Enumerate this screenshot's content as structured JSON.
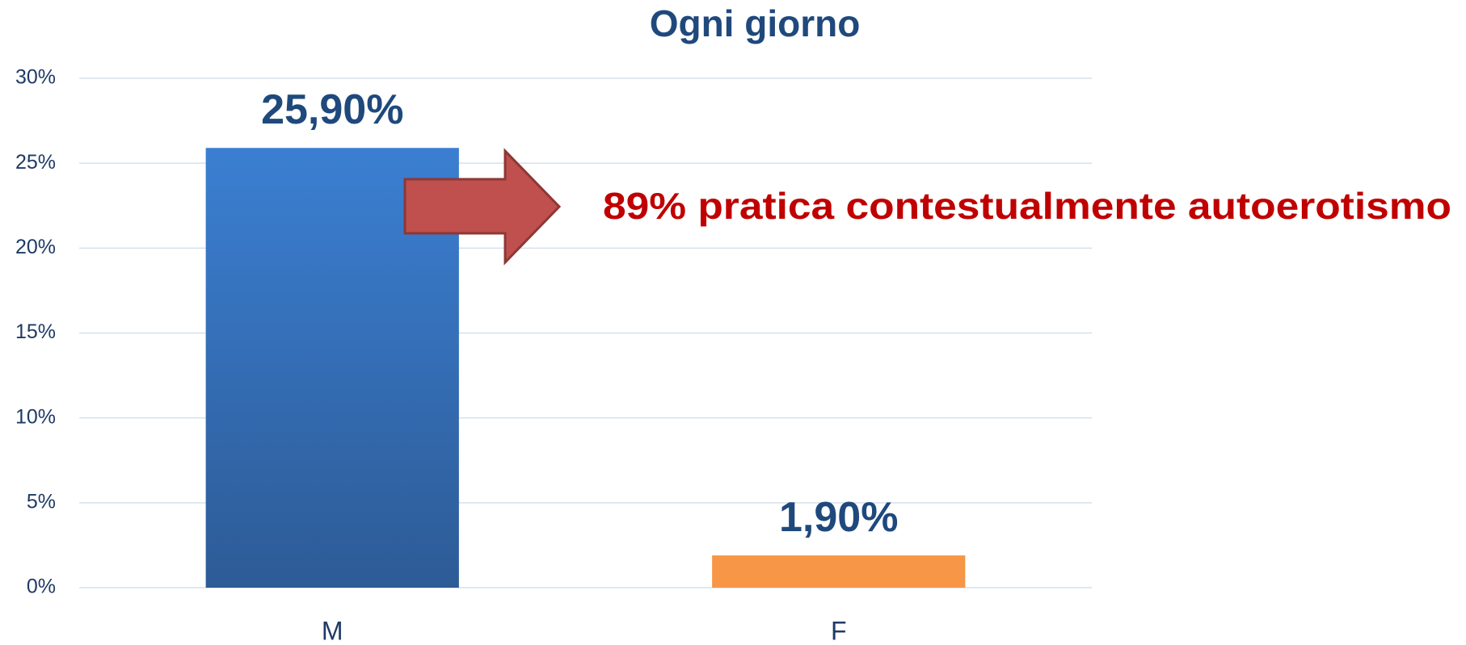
{
  "chart_data": {
    "type": "bar",
    "title": "Ogni giorno",
    "categories": [
      "M",
      "F"
    ],
    "values": [
      25.9,
      1.9
    ],
    "value_labels": [
      "25,90%",
      "1,90%"
    ],
    "colors": [
      "#3a7ccd",
      "#f79646"
    ],
    "ylim": [
      0,
      30
    ],
    "yticks": [
      {
        "value": 0,
        "label": "0%"
      },
      {
        "value": 5,
        "label": "5%"
      },
      {
        "value": 10,
        "label": "10%"
      },
      {
        "value": 15,
        "label": "15%"
      },
      {
        "value": 20,
        "label": "20%"
      },
      {
        "value": 25,
        "label": "25%"
      },
      {
        "value": 30,
        "label": "30%"
      }
    ],
    "grid": true,
    "annotation": "89% pratica contestualmente autoerotismo"
  }
}
